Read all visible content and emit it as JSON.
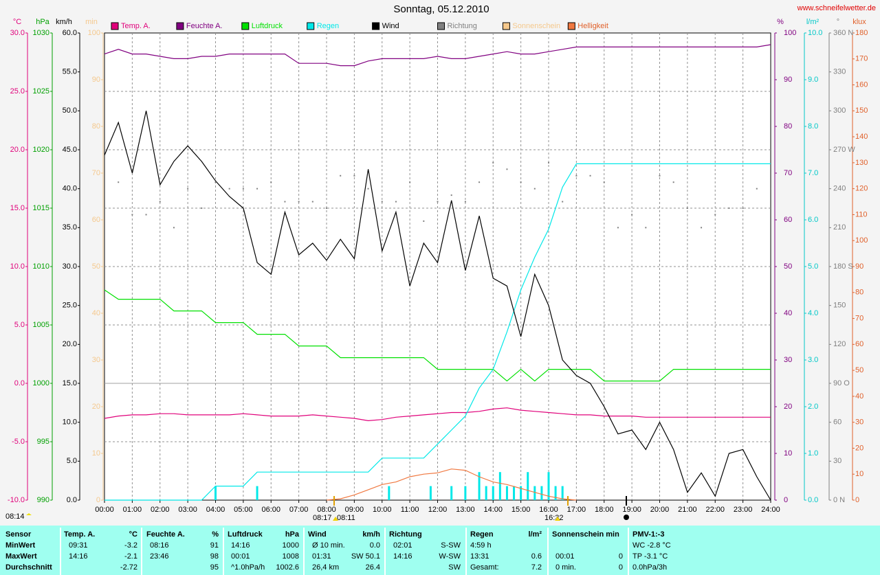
{
  "chart_data": {
    "type": "line",
    "title": "Sonntag, 05.12.2010",
    "source": "www.schneifelwetter.de",
    "grid": true,
    "x": [
      0,
      0.5,
      1,
      1.5,
      2,
      2.5,
      3,
      3.5,
      4,
      4.5,
      5,
      5.5,
      6,
      6.5,
      7,
      7.5,
      8,
      8.5,
      9,
      9.5,
      10,
      10.5,
      11,
      11.5,
      12,
      12.5,
      13,
      13.5,
      14,
      14.5,
      15,
      15.5,
      16,
      16.5,
      17,
      17.5,
      18,
      18.5,
      19,
      19.5,
      20,
      20.5,
      21,
      21.5,
      22,
      22.5,
      23,
      23.5,
      24
    ],
    "xlim": [
      0,
      24
    ],
    "xticks": [
      {
        "value": 0,
        "label": "00:00"
      },
      {
        "value": 1,
        "label": "01:00"
      },
      {
        "value": 2,
        "label": "02:00"
      },
      {
        "value": 3,
        "label": "03:00"
      },
      {
        "value": 4,
        "label": "04:00"
      },
      {
        "value": 5,
        "label": "05:00"
      },
      {
        "value": 6,
        "label": "06:00"
      },
      {
        "value": 7,
        "label": "07:00"
      },
      {
        "value": 8,
        "label": "08:00"
      },
      {
        "value": 9,
        "label": "09:00"
      },
      {
        "value": 10,
        "label": "10:00"
      },
      {
        "value": 11,
        "label": "11:00"
      },
      {
        "value": 12,
        "label": "12:00"
      },
      {
        "value": 13,
        "label": "13:00"
      },
      {
        "value": 14,
        "label": "14:00"
      },
      {
        "value": 15,
        "label": "15:00"
      },
      {
        "value": 16,
        "label": "16:00"
      },
      {
        "value": 17,
        "label": "17:00"
      },
      {
        "value": 18,
        "label": "18:00"
      },
      {
        "value": 19,
        "label": "19:00"
      },
      {
        "value": 20,
        "label": "20:00"
      },
      {
        "value": 21,
        "label": "21:00"
      },
      {
        "value": 22,
        "label": "22:00"
      },
      {
        "value": 23,
        "label": "23:00"
      },
      {
        "value": 24,
        "label": "24:00"
      }
    ],
    "axes": [
      {
        "unit": "°C",
        "side": "left",
        "color": "#e0007a",
        "lim": [
          -10,
          30
        ],
        "ticks": [
          {
            "value": -10,
            "label": "-10.0"
          },
          {
            "value": -5,
            "label": "-5.0"
          },
          {
            "value": 0,
            "label": "0.0"
          },
          {
            "value": 5,
            "label": "5.0"
          },
          {
            "value": 10,
            "label": "10.0"
          },
          {
            "value": 15,
            "label": "15.0"
          },
          {
            "value": 20,
            "label": "20.0"
          },
          {
            "value": 25,
            "label": "25.0"
          },
          {
            "value": 30,
            "label": "30.0"
          }
        ]
      },
      {
        "unit": "hPa",
        "side": "left",
        "color": "#00a000",
        "lim": [
          990,
          1030
        ],
        "ticks": [
          990,
          995,
          1000,
          1005,
          1010,
          1015,
          1020,
          1025,
          1030
        ]
      },
      {
        "unit": "km/h",
        "side": "left",
        "color": "#000000",
        "lim": [
          0,
          60
        ],
        "ticks": [
          {
            "value": 0,
            "label": "0.0"
          },
          {
            "value": 5,
            "label": "5.0"
          },
          {
            "value": 10,
            "label": "10.0"
          },
          {
            "value": 15,
            "label": "15.0"
          },
          {
            "value": 20,
            "label": "20.0"
          },
          {
            "value": 25,
            "label": "25.0"
          },
          {
            "value": 30,
            "label": "30.0"
          },
          {
            "value": 35,
            "label": "35.0"
          },
          {
            "value": 40,
            "label": "40.0"
          },
          {
            "value": 45,
            "label": "45.0"
          },
          {
            "value": 50,
            "label": "50.0"
          },
          {
            "value": 55,
            "label": "55.0"
          },
          {
            "value": 60,
            "label": "60.0"
          }
        ]
      },
      {
        "unit": "min",
        "side": "left",
        "color": "#f5c88c",
        "lim": [
          0,
          100
        ],
        "ticks": [
          0,
          10,
          20,
          30,
          40,
          50,
          60,
          70,
          80,
          90,
          100
        ]
      },
      {
        "unit": "%",
        "side": "right",
        "color": "#800080",
        "lim": [
          0,
          100
        ],
        "ticks": [
          0,
          10,
          20,
          30,
          40,
          50,
          60,
          70,
          80,
          90,
          100
        ]
      },
      {
        "unit": "l/m²",
        "side": "right",
        "color": "#00c8c8",
        "lim": [
          0,
          10
        ],
        "ticks": [
          {
            "value": 0,
            "label": "0.0"
          },
          {
            "value": 1,
            "label": "1.0"
          },
          {
            "value": 2,
            "label": "2.0"
          },
          {
            "value": 3,
            "label": "3.0"
          },
          {
            "value": 4,
            "label": "4.0"
          },
          {
            "value": 5,
            "label": "5.0"
          },
          {
            "value": 6,
            "label": "6.0"
          },
          {
            "value": 7,
            "label": "7.0"
          },
          {
            "value": 8,
            "label": "8.0"
          },
          {
            "value": 9,
            "label": "9.0"
          },
          {
            "value": 10,
            "label": "10.0"
          }
        ]
      },
      {
        "unit": "°",
        "side": "right",
        "color": "#808080",
        "lim": [
          0,
          360
        ],
        "ticks": [
          {
            "value": 0,
            "label": "0 N"
          },
          30,
          60,
          {
            "value": 90,
            "label": "90 O"
          },
          120,
          150,
          {
            "value": 180,
            "label": "180 S"
          },
          210,
          240,
          {
            "value": 270,
            "label": "270 W"
          },
          300,
          330,
          {
            "value": 360,
            "label": "360 N"
          }
        ]
      },
      {
        "unit": "klux",
        "side": "right",
        "color": "#e0602a",
        "lim": [
          0,
          180
        ],
        "ticks": [
          0,
          10,
          20,
          30,
          40,
          50,
          60,
          70,
          80,
          90,
          100,
          110,
          120,
          130,
          140,
          150,
          160,
          170,
          180
        ]
      }
    ],
    "legend": [
      {
        "name": "Temp. A.",
        "color": "#e0007a"
      },
      {
        "name": "Feuchte A.",
        "color": "#800080"
      },
      {
        "name": "Luftdruck",
        "color": "#00e000"
      },
      {
        "name": "Regen",
        "color": "#00e8e8"
      },
      {
        "name": "Wind",
        "color": "#000000"
      },
      {
        "name": "Richtung",
        "color": "#808080"
      },
      {
        "name": "Sonnenschein",
        "color": "#f5c88c"
      },
      {
        "name": "Helligkeit",
        "color": "#f07840"
      }
    ],
    "series": [
      {
        "legend": 0,
        "axis": 0,
        "style": "line",
        "values": [
          -3.0,
          -2.8,
          -2.7,
          -2.7,
          -2.6,
          -2.6,
          -2.7,
          -2.7,
          -2.7,
          -2.7,
          -2.6,
          -2.7,
          -2.8,
          -2.8,
          -2.8,
          -2.7,
          -2.8,
          -2.9,
          -3.0,
          -3.2,
          -3.1,
          -2.9,
          -2.8,
          -2.7,
          -2.6,
          -2.5,
          -2.5,
          -2.4,
          -2.2,
          -2.1,
          -2.3,
          -2.4,
          -2.5,
          -2.6,
          -2.7,
          -2.7,
          -2.8,
          -2.8,
          -2.8,
          -2.9,
          -2.9,
          -2.9,
          -2.9,
          -2.9,
          -2.9,
          -2.9,
          -2.9,
          -2.9,
          -2.9
        ]
      },
      {
        "legend": 1,
        "axis": 4,
        "style": "line",
        "values": [
          95.5,
          96.5,
          95.5,
          95.5,
          95,
          94.5,
          94.5,
          95,
          95,
          95.5,
          95.5,
          95.5,
          95.5,
          95.5,
          93.5,
          93.5,
          93.5,
          93,
          93,
          94,
          94.5,
          94.5,
          94.5,
          94.5,
          95,
          94.5,
          94.5,
          95,
          95.5,
          96,
          95.5,
          95.5,
          96,
          96.5,
          97,
          97,
          97,
          97,
          97,
          97,
          97,
          97,
          97,
          97,
          97,
          97,
          97,
          97,
          97.5
        ]
      },
      {
        "legend": 2,
        "axis": 1,
        "style": "line",
        "values": [
          1008,
          1007.2,
          1007.2,
          1007.2,
          1007.2,
          1006.2,
          1006.2,
          1006.2,
          1005.2,
          1005.2,
          1005.2,
          1004.2,
          1004.2,
          1004.2,
          1003.2,
          1003.2,
          1003.2,
          1002.2,
          1002.2,
          1002.2,
          1002.2,
          1002.2,
          1002.2,
          1002.2,
          1001.2,
          1001.2,
          1001.2,
          1001.2,
          1001.2,
          1000.2,
          1001.2,
          1000.2,
          1001.2,
          1001.2,
          1001.2,
          1001.2,
          1000.2,
          1000.2,
          1000.2,
          1000.2,
          1000.2,
          1001.2,
          1001.2,
          1001.2,
          1001.2,
          1001.2,
          1001.2,
          1001.2,
          1001.2
        ]
      },
      {
        "legend": 3,
        "axis": 5,
        "style": "line",
        "values": [
          0,
          0,
          0,
          0,
          0,
          0,
          0,
          0,
          0.3,
          0.3,
          0.3,
          0.6,
          0.6,
          0.6,
          0.6,
          0.6,
          0.6,
          0.6,
          0.6,
          0.6,
          0.9,
          0.9,
          0.9,
          0.9,
          1.2,
          1.5,
          1.8,
          2.4,
          2.8,
          3.6,
          4.5,
          5.2,
          5.8,
          6.7,
          7.2,
          7.2,
          7.2,
          7.2,
          7.2,
          7.2,
          7.2,
          7.2,
          7.2,
          7.2,
          7.2,
          7.2,
          7.2,
          7.2,
          7.2
        ]
      },
      {
        "legend": 3,
        "axis": 5,
        "style": "bar",
        "x": [
          4,
          5.5,
          10.25,
          11.75,
          12.5,
          13,
          13.5,
          13.75,
          14,
          14.25,
          14.5,
          14.75,
          15,
          15.25,
          15.5,
          15.75,
          16,
          16.25,
          16.5
        ],
        "values": [
          0.3,
          0.3,
          0.3,
          0.3,
          0.3,
          0.3,
          0.6,
          0.3,
          0.3,
          0.6,
          0.3,
          0.3,
          0.3,
          0.6,
          0.3,
          0.3,
          0.6,
          0.3,
          0.3
        ]
      },
      {
        "legend": 4,
        "axis": 2,
        "style": "line",
        "values": [
          44.3,
          48.5,
          42,
          50,
          40.5,
          43.5,
          45.5,
          43.5,
          41,
          39,
          37.5,
          30.5,
          29,
          37,
          31.5,
          33,
          30.8,
          33.5,
          31,
          42.5,
          32,
          37,
          27.5,
          33,
          30.5,
          38.5,
          29.5,
          36.5,
          28.5,
          27.5,
          21,
          29,
          25,
          18,
          16,
          15,
          12,
          8.5,
          9,
          6.5,
          10,
          6.5,
          1,
          3.5,
          0.5,
          6,
          6.5,
          3,
          0
        ]
      },
      {
        "legend": 5,
        "axis": 6,
        "style": "dots",
        "values": [
          225,
          245,
          220,
          220,
          230,
          210,
          240,
          225,
          245,
          240,
          240,
          240,
          245,
          230,
          230,
          230,
          225,
          250,
          250,
          240,
          230,
          230,
          245,
          215,
          230,
          235,
          230,
          245,
          260,
          255,
          245,
          240,
          260,
          230,
          250,
          250,
          245,
          210,
          220,
          210,
          250,
          245,
          225,
          210,
          220,
          225,
          225,
          240,
          240
        ]
      },
      {
        "legend": 7,
        "axis": 7,
        "style": "line",
        "values": [
          null,
          null,
          null,
          null,
          null,
          null,
          null,
          null,
          null,
          null,
          null,
          null,
          null,
          null,
          null,
          null,
          0,
          0.5,
          2,
          4,
          6,
          7,
          9,
          10,
          10.5,
          12,
          11.5,
          9,
          7,
          6,
          4.5,
          3,
          1.5,
          0.5,
          0,
          null,
          null,
          null,
          null,
          null,
          null,
          null,
          null,
          null,
          null,
          null,
          null,
          null,
          null
        ]
      }
    ],
    "annotations": [
      "08:14",
      "08:17",
      "08:11",
      "16:32"
    ]
  },
  "stats_table": {
    "header": [
      [
        "Sensor",
        null
      ],
      [
        "Temp. A.",
        "°C"
      ],
      [
        "Feuchte A.",
        "%"
      ],
      [
        "Luftdruck",
        "hPa"
      ],
      [
        "Wind",
        "km/h"
      ],
      [
        "Richtung",
        null
      ],
      [
        "Regen",
        "l/m²"
      ],
      [
        "Sonnenschein min",
        null
      ],
      [
        "PMV-1:-3",
        null
      ]
    ],
    "rows": [
      [
        [
          "MinWert",
          null
        ],
        [
          "09:31",
          "-3.2"
        ],
        [
          "08:16",
          "91"
        ],
        [
          "14:16",
          "1000"
        ],
        [
          "Ø 10 min.",
          "0.0"
        ],
        [
          "02:01",
          "S-SW"
        ],
        [
          "4:59 h",
          null
        ],
        [
          null,
          null
        ],
        [
          "WC -2.8 °C",
          null
        ]
      ],
      [
        [
          "MaxWert",
          null
        ],
        [
          "14:16",
          "-2.1"
        ],
        [
          "23:46",
          "98"
        ],
        [
          "00:01",
          "1008"
        ],
        [
          "01:31",
          "SW 50.1"
        ],
        [
          "14:16",
          "W-SW"
        ],
        [
          "13:31",
          "0.6"
        ],
        [
          "00:01",
          "0"
        ],
        [
          "TP -3.1 °C",
          null
        ]
      ],
      [
        [
          "Durchschnitt",
          null
        ],
        [
          null,
          "-2.72"
        ],
        [
          null,
          "95"
        ],
        [
          "^1.0hPa/h",
          "1002.6"
        ],
        [
          "26,4 km",
          "26.4"
        ],
        [
          null,
          "SW"
        ],
        [
          "Gesamt:",
          "7.2"
        ],
        [
          "0 min.",
          "0"
        ],
        [
          "0.0hPa/3h",
          null
        ]
      ]
    ]
  }
}
